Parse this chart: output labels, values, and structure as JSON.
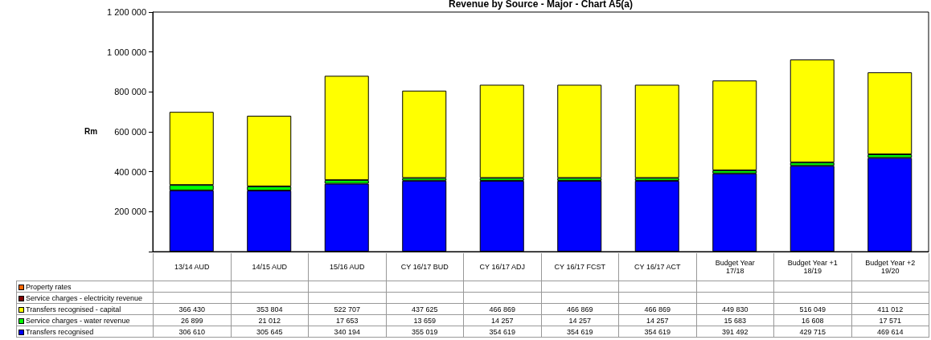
{
  "chart_data": {
    "type": "bar",
    "title": "Revenue by Source - Major - Chart A5(a)",
    "ylabel": "Rm",
    "stacked": true,
    "grid": false,
    "legend": "bottom left",
    "categories": [
      "13/14 AUD",
      "14/15 AUD",
      "15/16 AUD",
      "CY 16/17 BUD",
      "CY  16/17 ADJ",
      "CY 16/17 FCST",
      "CY 16/17 ACT",
      "Budget Year\n17/18",
      "Budget Year +1\n18/19",
      "Budget Year +2\n19/20"
    ],
    "ylim": [
      0,
      1200000
    ],
    "yticks": [
      {
        "value": 0,
        "label": null
      },
      {
        "value": 200000,
        "label": "200 000"
      },
      {
        "value": 400000,
        "label": "400 000"
      },
      {
        "value": 600000,
        "label": "600 000"
      },
      {
        "value": 800000,
        "label": "800 000"
      },
      {
        "value": 1000000,
        "label": "1 000 000"
      },
      {
        "value": 1200000,
        "label": "1 200 000"
      }
    ],
    "series": [
      {
        "name": "Transfers recognised",
        "color": "#0000ff",
        "values": [
          306610,
          305645,
          340194,
          355019,
          354619,
          354619,
          354619,
          391492,
          429715,
          469614
        ],
        "value_labels": [
          "306 610",
          "305 645",
          "340 194",
          "355 019",
          "354 619",
          "354 619",
          "354 619",
          "391 492",
          "429 715",
          "469 614"
        ]
      },
      {
        "name": "Service charges - water revenue",
        "color": "#00ff00",
        "values": [
          26899,
          21012,
          17653,
          13659,
          14257,
          14257,
          14257,
          15683,
          16608,
          17571
        ],
        "value_labels": [
          "26 899",
          "21 012",
          "17 653",
          "13 659",
          "14 257",
          "14 257",
          "14 257",
          "15 683",
          "16 608",
          "17 571"
        ]
      },
      {
        "name": "Transfers recognised - capital",
        "color": "#ffff00",
        "values": [
          366430,
          353804,
          522707,
          437625,
          466869,
          466869,
          466869,
          449830,
          516049,
          411012
        ],
        "value_labels": [
          "366 430",
          "353 804",
          "522 707",
          "437 625",
          "466 869",
          "466 869",
          "466 869",
          "449 830",
          "516 049",
          "411 012"
        ]
      },
      {
        "name": "Service charges - electricity revenue",
        "color": "#800000",
        "values": [
          null,
          null,
          null,
          null,
          null,
          null,
          null,
          null,
          null,
          null
        ]
      },
      {
        "name": "Property rates",
        "color": "#ff6600",
        "values": [
          null,
          null,
          null,
          null,
          null,
          null,
          null,
          null,
          null,
          null
        ]
      }
    ]
  }
}
